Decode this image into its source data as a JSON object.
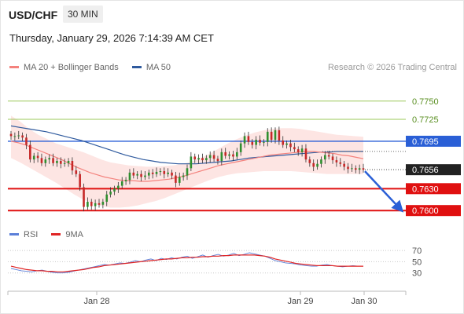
{
  "header": {
    "symbol": "USD/CHF",
    "interval": "30 MIN"
  },
  "datetime": "Thursday, January 29, 2026 7:14:39 AM CET",
  "legend": [
    {
      "label": "MA 20 + Bollinger Bands",
      "color": "#f4827d"
    },
    {
      "label": "MA 50",
      "color": "#2f5a9e"
    }
  ],
  "copyright": "Research © 2026 Trading Central",
  "indicator_legend": [
    {
      "label": "RSI",
      "color": "#5b7fd8"
    },
    {
      "label": "9MA",
      "color": "#e02424"
    }
  ],
  "chart_data": [
    {
      "type": "candlestick",
      "y_range": [
        0.7583,
        0.7781
      ],
      "x_labels": [
        "Jan 28",
        "Jan 29",
        "Jan 30"
      ],
      "levels": [
        {
          "label": "0.7750",
          "value": 0.775,
          "color": "#9bc85a",
          "label_style": "text"
        },
        {
          "label": "0.7725",
          "value": 0.7725,
          "color": "#9bc85a",
          "label_style": "text"
        },
        {
          "label": "0.7695",
          "value": 0.7695,
          "color": "#2a5fd6",
          "label_style": "box"
        },
        {
          "label": "0.7630",
          "value": 0.763,
          "color": "#e01010",
          "label_style": "box"
        },
        {
          "label": "0.7600",
          "value": 0.76,
          "color": "#e01010",
          "label_style": "box"
        }
      ],
      "last_price": {
        "label": "0.7656",
        "value": 0.7656,
        "color": "#222222"
      },
      "closes": [
        0.7702,
        0.7702,
        0.7703,
        0.77,
        0.769,
        0.767,
        0.7675,
        0.7672,
        0.7665,
        0.767,
        0.7672,
        0.7665,
        0.7668,
        0.7664,
        0.7665,
        0.7668,
        0.7655,
        0.765,
        0.7632,
        0.7605,
        0.7612,
        0.7606,
        0.761,
        0.7608,
        0.7612,
        0.7622,
        0.7626,
        0.763,
        0.7634,
        0.764,
        0.7642,
        0.7652,
        0.7648,
        0.765,
        0.7646,
        0.7648,
        0.7652,
        0.765,
        0.7653,
        0.7654,
        0.765,
        0.7652,
        0.7648,
        0.7638,
        0.7646,
        0.7648,
        0.7658,
        0.7674,
        0.767,
        0.7672,
        0.7669,
        0.7672,
        0.7676,
        0.7671,
        0.7668,
        0.768,
        0.7675,
        0.7677,
        0.7674,
        0.768,
        0.7692,
        0.7702,
        0.7694,
        0.769,
        0.7697,
        0.7693,
        0.7694,
        0.7708,
        0.7697,
        0.771,
        0.7696,
        0.769,
        0.7692,
        0.7687,
        0.7684,
        0.768,
        0.7685,
        0.767,
        0.7665,
        0.766,
        0.7664,
        0.767,
        0.7676,
        0.7674,
        0.7669,
        0.7666,
        0.7664,
        0.766,
        0.7657,
        0.7658,
        0.7656,
        0.7658,
        0.7656
      ],
      "ma20": [
        0.7695,
        0.7693,
        0.769,
        0.7686,
        0.7682,
        0.7678,
        0.7674,
        0.767,
        0.7665,
        0.766,
        0.7656,
        0.7652,
        0.7649,
        0.7646,
        0.7644,
        0.7642,
        0.7641,
        0.7641,
        0.764,
        0.764,
        0.7641,
        0.7642,
        0.7643,
        0.7645,
        0.7647,
        0.765,
        0.7653,
        0.7656,
        0.7659,
        0.7662,
        0.7664,
        0.7666,
        0.7668,
        0.767,
        0.7672,
        0.7674,
        0.7676,
        0.7677,
        0.7678,
        0.7679,
        0.768,
        0.7681,
        0.7681,
        0.768,
        0.7679,
        0.7678,
        0.7676,
        0.7675,
        0.7673,
        0.7671
      ],
      "ma50": [
        0.7716,
        0.7714,
        0.7712,
        0.771,
        0.7708,
        0.7705,
        0.7702,
        0.7699,
        0.7696,
        0.7692,
        0.7688,
        0.7684,
        0.768,
        0.7676,
        0.7673,
        0.767,
        0.7668,
        0.7666,
        0.7665,
        0.7664,
        0.7664,
        0.7664,
        0.7665,
        0.7666,
        0.7667,
        0.7668,
        0.767,
        0.7672,
        0.7673,
        0.7674,
        0.7675,
        0.7676,
        0.7677,
        0.7678,
        0.7679,
        0.768,
        0.768,
        0.7681,
        0.7681,
        0.7681,
        0.7681
      ],
      "bb_upper": [
        0.773,
        0.7722,
        0.7712,
        0.7704,
        0.7698,
        0.7692,
        0.7688,
        0.7684,
        0.768,
        0.7675,
        0.767,
        0.7666,
        0.7664,
        0.7662,
        0.7661,
        0.766,
        0.766,
        0.7661,
        0.7662,
        0.7664,
        0.7667,
        0.7672,
        0.7678,
        0.7685,
        0.7692,
        0.7698,
        0.7703,
        0.7707,
        0.771,
        0.7712,
        0.7713,
        0.7713,
        0.7712,
        0.771,
        0.7708,
        0.7706,
        0.7704,
        0.7703,
        0.7702,
        0.7701
      ],
      "bb_lower": [
        0.7672,
        0.7666,
        0.7659,
        0.7652,
        0.7645,
        0.7638,
        0.763,
        0.7622,
        0.7615,
        0.761,
        0.7606,
        0.7604,
        0.7604,
        0.7605,
        0.7607,
        0.761,
        0.7613,
        0.7617,
        0.7622,
        0.7627,
        0.7632,
        0.7637,
        0.7642,
        0.7646,
        0.7649,
        0.7651,
        0.7652,
        0.7653,
        0.7654,
        0.7654,
        0.7654,
        0.7654,
        0.7653,
        0.7652,
        0.7651,
        0.765,
        0.765,
        0.765,
        0.765,
        0.765
      ]
    },
    {
      "type": "line",
      "indicator": "RSI",
      "y_ticks": [
        70,
        50,
        30
      ],
      "y_range": [
        10,
        80
      ],
      "series": [
        {
          "name": "RSI",
          "color": "#5b7fd8",
          "values": [
            38,
            36,
            34,
            33,
            32,
            34,
            35,
            33,
            31,
            30,
            30,
            31,
            33,
            35,
            37,
            39,
            41,
            43,
            45,
            44,
            46,
            48,
            47,
            49,
            52,
            50,
            53,
            55,
            52,
            56,
            54,
            57,
            55,
            58,
            60,
            56,
            59,
            62,
            58,
            61,
            63,
            60,
            62,
            65,
            61,
            63,
            66,
            64,
            62,
            60,
            56,
            52,
            50,
            48,
            47,
            46,
            44,
            43,
            42,
            42,
            44,
            45,
            43,
            42,
            41,
            42,
            43,
            42,
            42
          ]
        },
        {
          "name": "9MA",
          "color": "#e02424",
          "values": [
            42,
            40,
            38,
            36,
            35,
            34,
            34,
            33,
            33,
            32,
            32,
            33,
            34,
            35,
            36,
            38,
            40,
            41,
            43,
            44,
            45,
            46,
            47,
            48,
            49,
            50,
            51,
            52,
            53,
            54,
            55,
            55,
            56,
            57,
            57,
            58,
            58,
            59,
            59,
            60,
            60,
            61,
            61,
            62,
            62,
            62,
            62,
            62,
            61,
            60,
            58,
            55,
            53,
            51,
            49,
            47,
            46,
            45,
            44,
            43,
            43,
            43,
            43,
            42,
            42,
            42,
            42,
            42,
            42
          ]
        }
      ]
    }
  ]
}
